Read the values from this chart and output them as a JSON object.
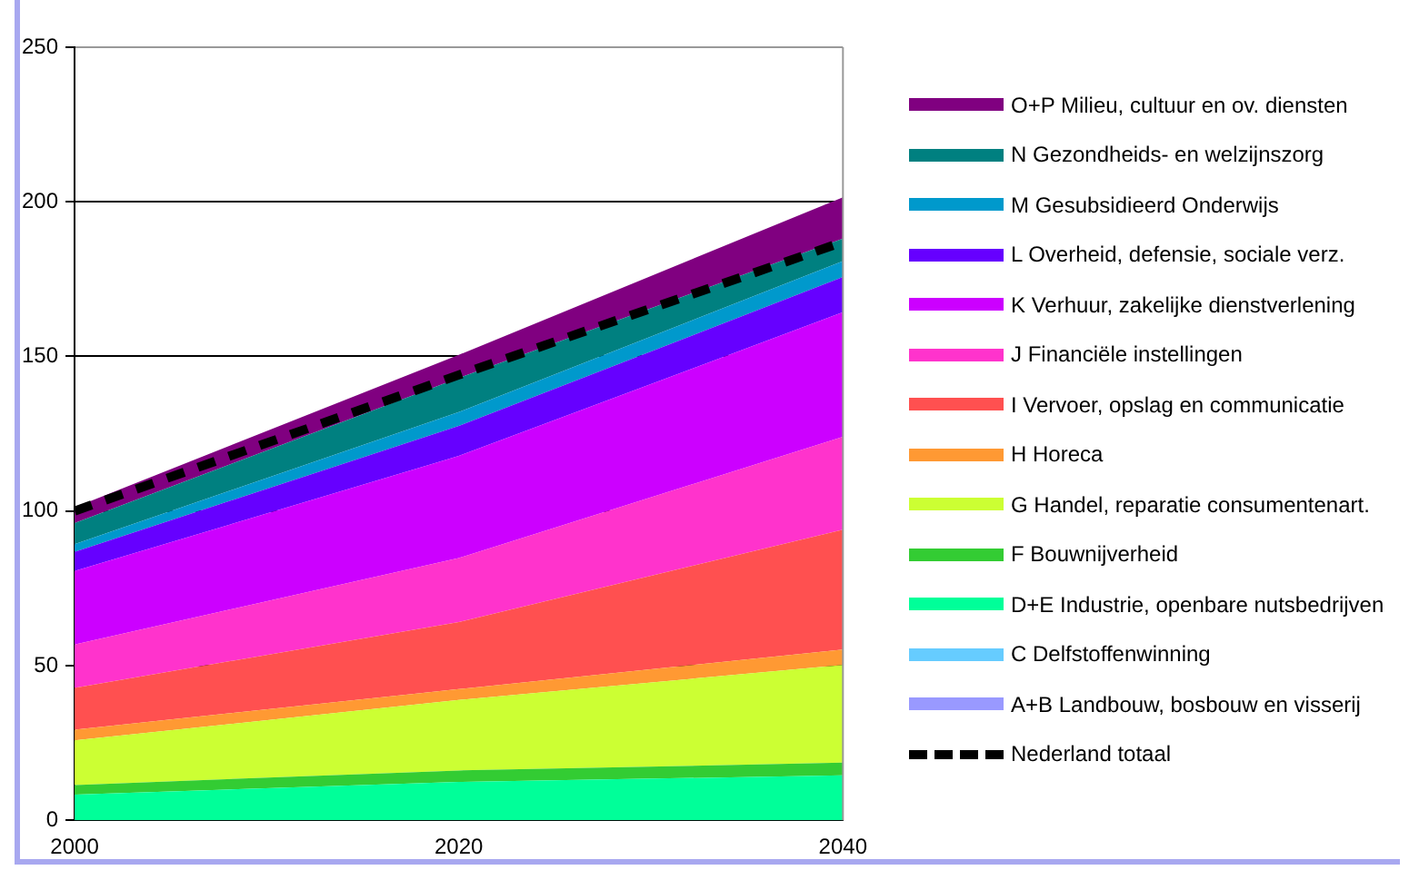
{
  "chart_data": {
    "type": "area",
    "stacked": true,
    "x": [
      2000,
      2020,
      2040
    ],
    "xlim": [
      2000,
      2040
    ],
    "xticks": [
      2000,
      2020,
      2040
    ],
    "ylim": [
      0,
      250
    ],
    "yticks": [
      0,
      50,
      100,
      150,
      200,
      250
    ],
    "grid": "y",
    "legend": "right",
    "series": [
      {
        "name": "A+B Landbouw, bosbouw en visserij",
        "color": "#9999ff",
        "values": [
          null,
          null,
          null
        ]
      },
      {
        "name": "C Delfstoffenwinning",
        "color": "#66ccff",
        "values": [
          null,
          null,
          null
        ]
      },
      {
        "name": "D+E Industrie, openbare nutsbedrijven",
        "color": "#00ff99",
        "values": [
          8.3,
          12.4,
          14.5
        ]
      },
      {
        "name": "F Bouwnijverheid",
        "color": "#33cc33",
        "values": [
          3.1,
          3.7,
          4.1
        ]
      },
      {
        "name": "G Handel, reparatie consumentenart.",
        "color": "#ccff33",
        "values": [
          14.4,
          22.8,
          31.6
        ]
      },
      {
        "name": "H Horeca",
        "color": "#ff9933",
        "values": [
          3.5,
          3.5,
          5.0
        ]
      },
      {
        "name": "I Vervoer, opslag en communicatie",
        "color": "#ff5050",
        "values": [
          13.5,
          21.7,
          38.8
        ]
      },
      {
        "name": "J Financiële instellingen",
        "color": "#ff33cc",
        "values": [
          14.0,
          20.7,
          30.0
        ]
      },
      {
        "name": "K Verhuur, zakelijke dienstverlening",
        "color": "#cc00ff",
        "values": [
          23.8,
          33.0,
          40.3
        ]
      },
      {
        "name": "L Overheid, defensie, sociale verz.",
        "color": "#6600ff",
        "values": [
          6.2,
          9.7,
          11.4
        ]
      },
      {
        "name": "M Gesubsidieerd Onderwijs",
        "color": "#0099cc",
        "values": [
          2.5,
          4.5,
          5.1
        ]
      },
      {
        "name": "N Gezondheids- en welzijnszorg",
        "color": "#008080",
        "values": [
          6.8,
          11.0,
          7.3
        ]
      },
      {
        "name": "O+P Milieu, cultuur en ov. diensten",
        "color": "#800080",
        "values": [
          5.1,
          7.5,
          13.4
        ]
      },
      {
        "name": "Nederland totaal",
        "type": "line",
        "line_style": "dashed",
        "color": "#000000",
        "values": [
          100,
          144,
          187
        ]
      }
    ]
  }
}
